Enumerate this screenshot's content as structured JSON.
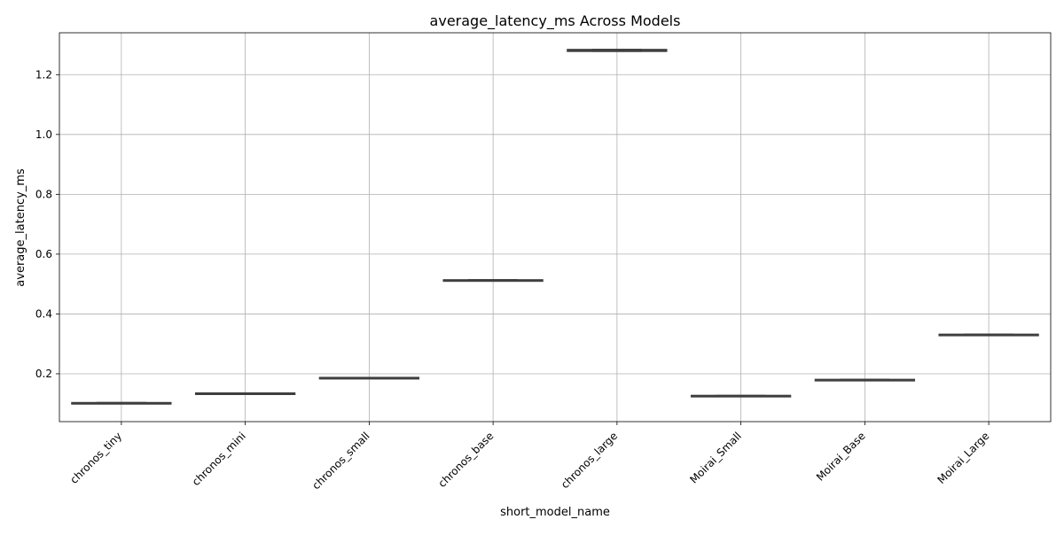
{
  "chart_data": {
    "type": "box",
    "title": "average_latency_ms Across Models",
    "xlabel": "short_model_name",
    "ylabel": "average_latency_ms",
    "ylim": [
      0.04,
      1.34
    ],
    "yticks": [
      0.2,
      0.4,
      0.6,
      0.8,
      1.0,
      1.2
    ],
    "ytick_labels": [
      "0.2",
      "0.4",
      "0.6",
      "0.8",
      "1.0",
      "1.2"
    ],
    "grid": true,
    "categories": [
      "chronos_tiny",
      "chronos_mini",
      "chronos_small",
      "chronos_base",
      "chronos_large",
      "Moirai_Small",
      "Moirai_Base",
      "Moirai_Large"
    ],
    "boxes": [
      {
        "category": "chronos_tiny",
        "min": 0.1025,
        "q1": 0.1025,
        "median": 0.103,
        "q3": 0.1035,
        "max": 0.1035
      },
      {
        "category": "chronos_mini",
        "min": 0.1345,
        "q1": 0.1345,
        "median": 0.135,
        "q3": 0.1355,
        "max": 0.1355
      },
      {
        "category": "chronos_small",
        "min": 0.1865,
        "q1": 0.1865,
        "median": 0.187,
        "q3": 0.1875,
        "max": 0.1875
      },
      {
        "category": "chronos_base",
        "min": 0.512,
        "q1": 0.5125,
        "median": 0.513,
        "q3": 0.514,
        "max": 0.514
      },
      {
        "category": "chronos_large",
        "min": 1.278,
        "q1": 1.278,
        "median": 1.28,
        "q3": 1.284,
        "max": 1.284
      },
      {
        "category": "Moirai_Small",
        "min": 0.125,
        "q1": 0.125,
        "median": 0.126,
        "q3": 0.1275,
        "max": 0.1275
      },
      {
        "category": "Moirai_Base",
        "min": 0.179,
        "q1": 0.179,
        "median": 0.18,
        "q3": 0.181,
        "max": 0.181
      },
      {
        "category": "Moirai_Large",
        "min": 0.3305,
        "q1": 0.3305,
        "median": 0.331,
        "q3": 0.332,
        "max": 0.332
      }
    ],
    "colors": {
      "box_fill": "#4c72b0",
      "box_edge": "#3f3f3f",
      "grid": "#b0b0b0"
    }
  }
}
